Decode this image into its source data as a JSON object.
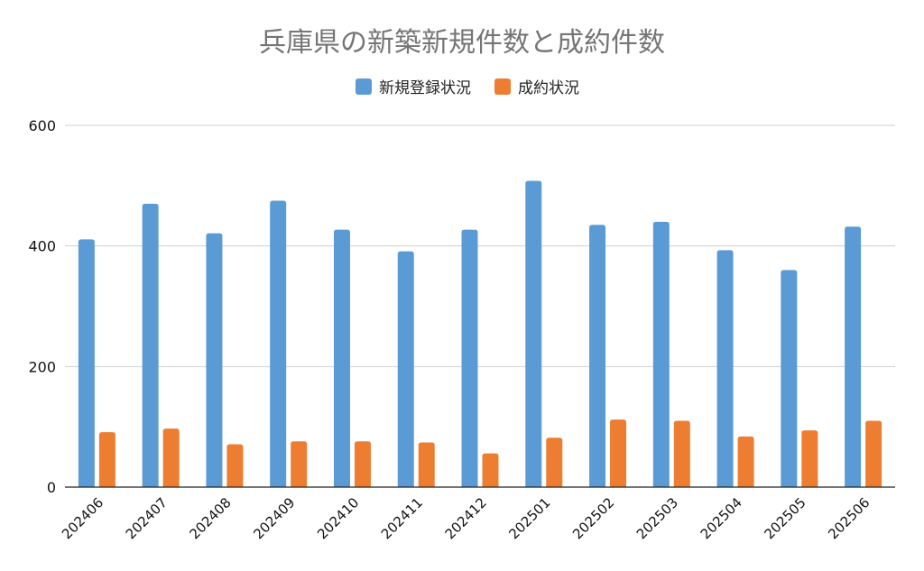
{
  "chart_data": {
    "type": "bar",
    "title": "兵庫県の新築新規件数と成約件数",
    "categories": [
      "202406",
      "202407",
      "202408",
      "202409",
      "202410",
      "202411",
      "202412",
      "202501",
      "202502",
      "202503",
      "202504",
      "202505",
      "202506"
    ],
    "series": [
      {
        "name": "新規登録状況",
        "color": "#5b9bd5",
        "values": [
          411,
          470,
          421,
          475,
          427,
          391,
          427,
          508,
          435,
          440,
          393,
          360,
          432
        ]
      },
      {
        "name": "成約状況",
        "color": "#ed7d31",
        "values": [
          91,
          97,
          71,
          76,
          76,
          74,
          56,
          82,
          112,
          110,
          84,
          94,
          110
        ]
      }
    ],
    "xlabel": "",
    "ylabel": "",
    "ylim": [
      0,
      600
    ],
    "yticks": [
      0,
      200,
      400,
      600
    ],
    "grid": true,
    "legend_position": "top-center"
  }
}
